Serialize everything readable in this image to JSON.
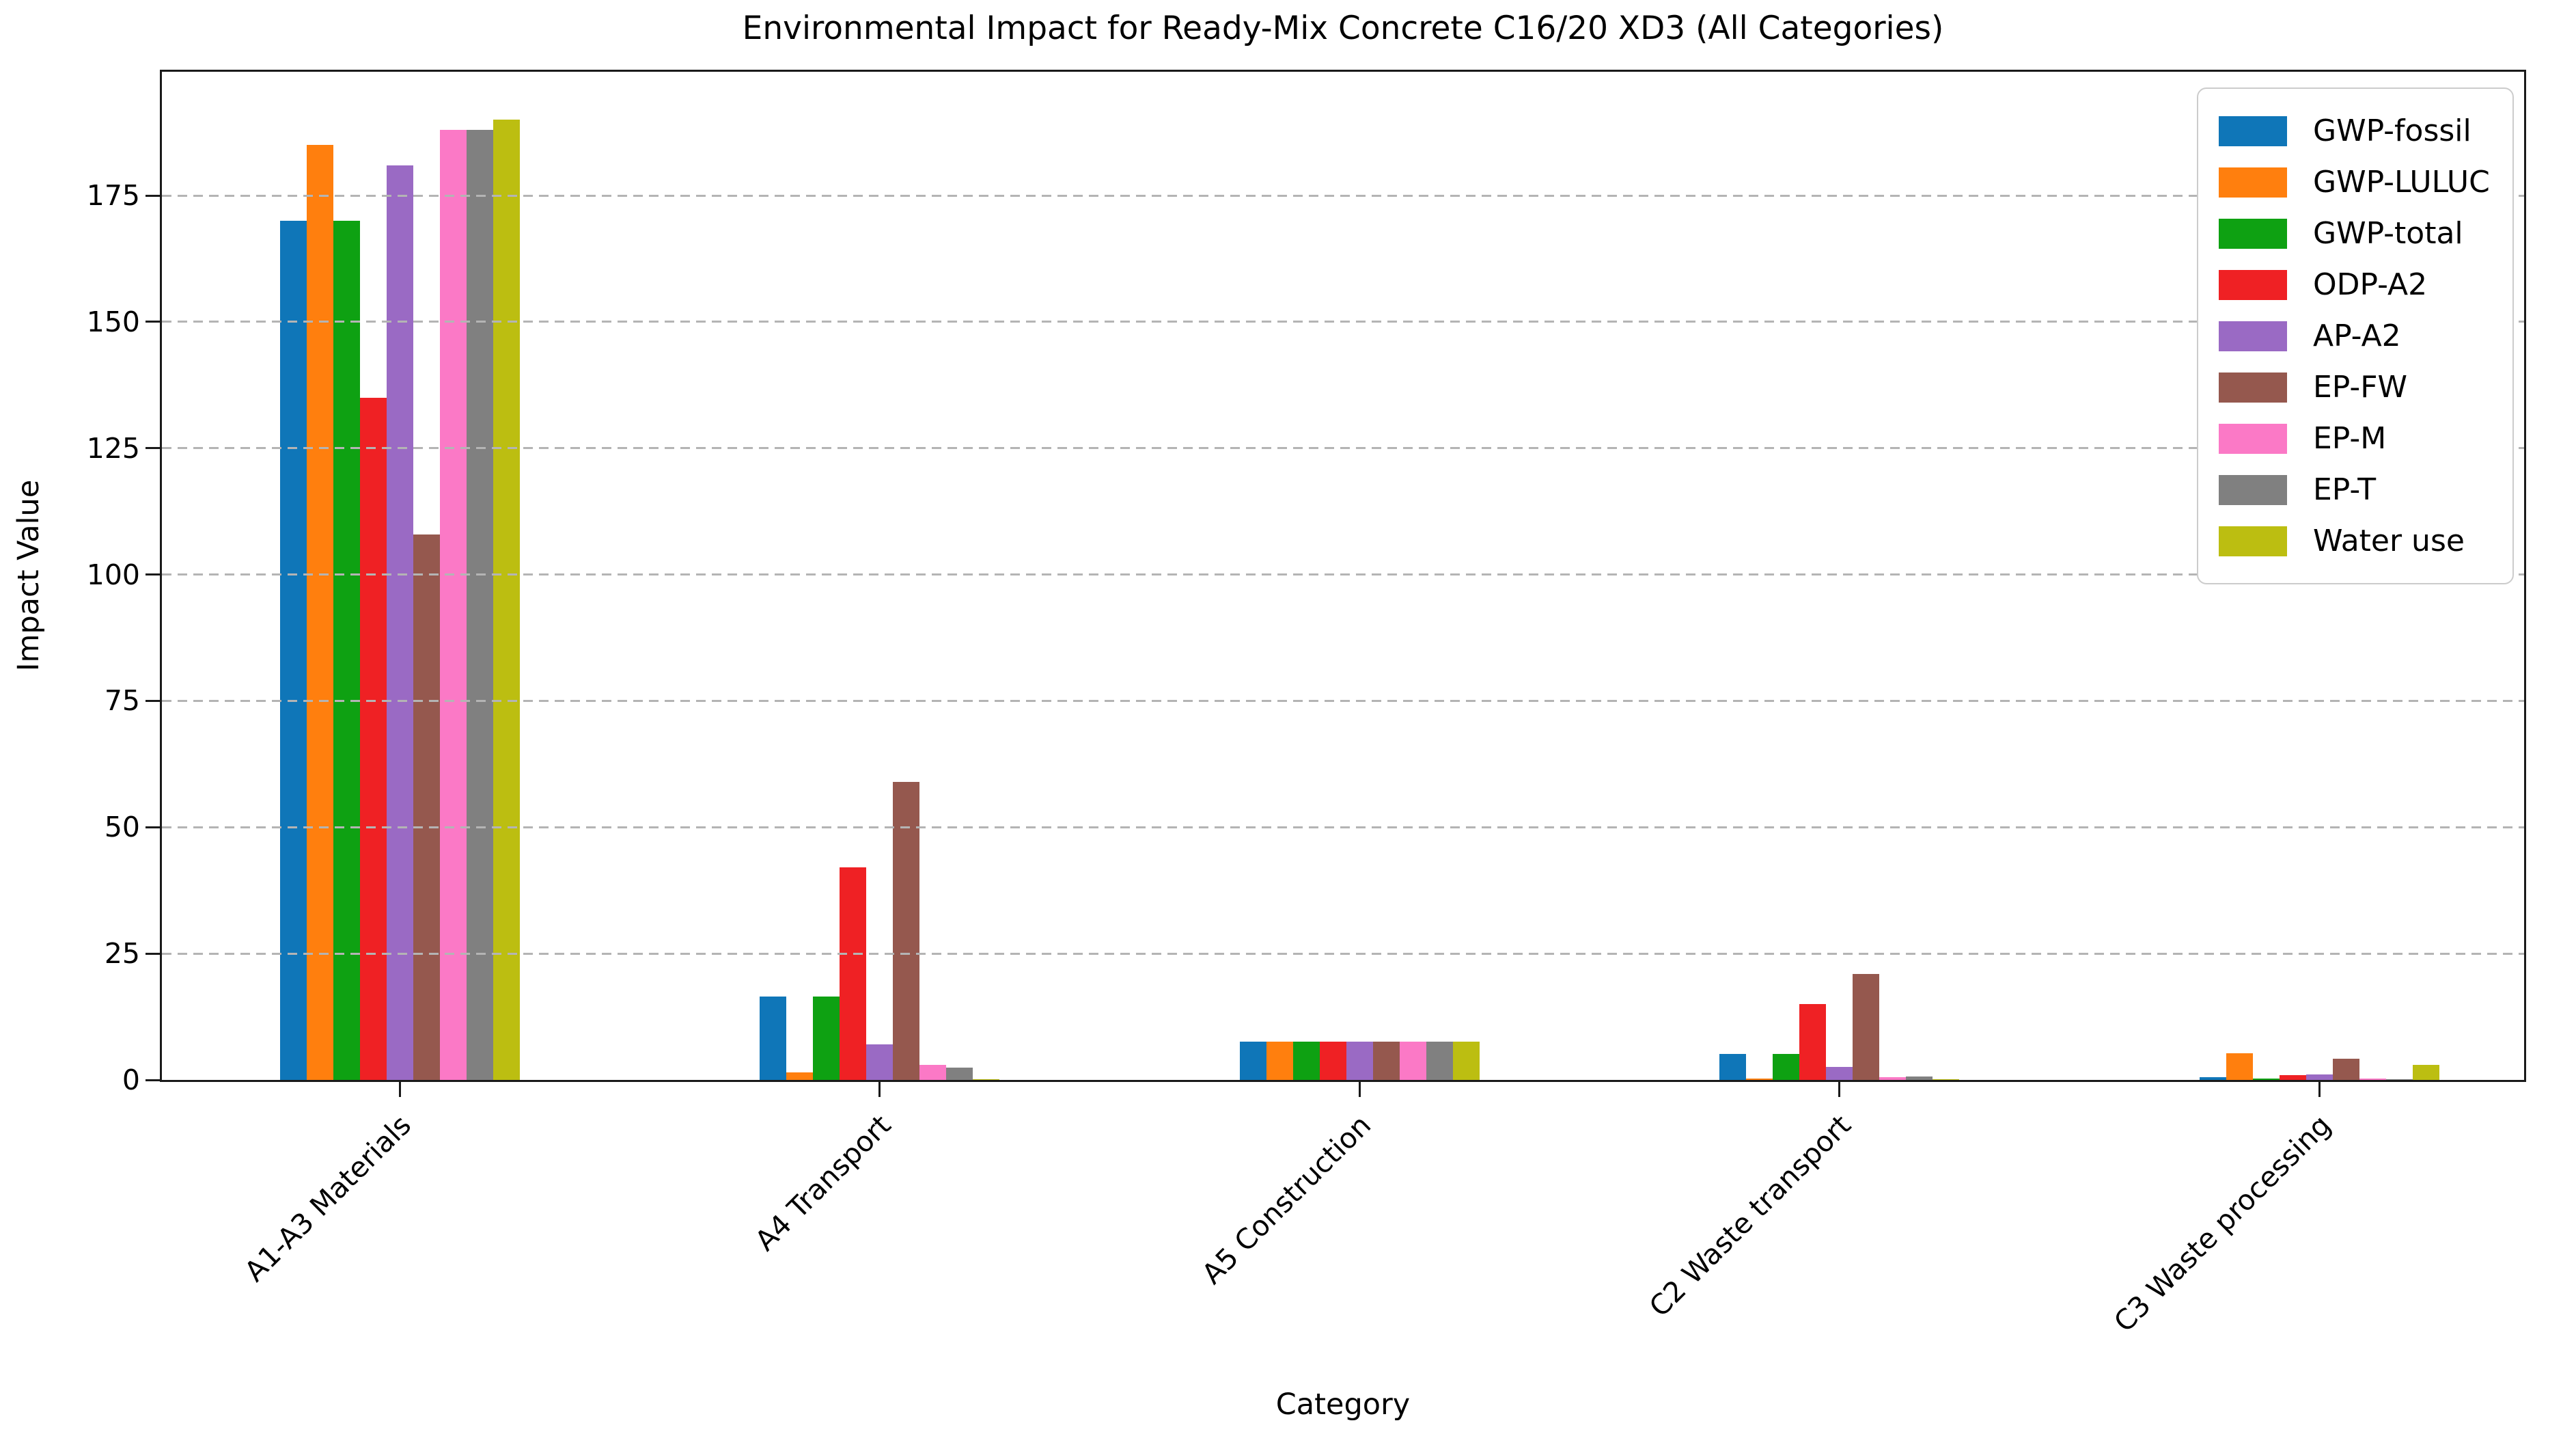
{
  "chart_data": {
    "type": "bar",
    "title": "Environmental Impact for Ready-Mix Concrete C16/20 XD3 (All Categories)",
    "xlabel": "Category",
    "ylabel": "Impact Value",
    "ylim": [
      0,
      199.5
    ],
    "yticks": [
      0,
      25,
      50,
      75,
      100,
      125,
      150,
      175
    ],
    "grid": "horizontal-dashed",
    "grid_above_bars": true,
    "legend_position": "upper-right",
    "categories": [
      "A1-A3 Materials",
      "A4 Transport",
      "A5 Construction",
      "C2 Waste transport",
      "C3 Waste processing"
    ],
    "series": [
      {
        "name": "GWP-fossil",
        "color": "#0f76b8",
        "values": [
          170,
          16.5,
          7.6,
          5.2,
          0.5
        ]
      },
      {
        "name": "GWP-LULUC",
        "color": "#ff7f0e",
        "values": [
          185,
          1.5,
          7.6,
          0.3,
          5.3
        ]
      },
      {
        "name": "GWP-total",
        "color": "#0ea112",
        "values": [
          170,
          16.5,
          7.6,
          5.1,
          0.3
        ]
      },
      {
        "name": "ODP-A2",
        "color": "#ef2124",
        "values": [
          135,
          42,
          7.6,
          15,
          0.9
        ]
      },
      {
        "name": "AP-A2",
        "color": "#9a6ac4",
        "values": [
          181,
          7,
          7.6,
          2.6,
          1.1
        ]
      },
      {
        "name": "EP-FW",
        "color": "#95584e",
        "values": [
          108,
          59,
          7.6,
          21,
          4.2
        ]
      },
      {
        "name": "EP-M",
        "color": "#fb79c6",
        "values": [
          188,
          3,
          7.6,
          0.6,
          0.3
        ]
      },
      {
        "name": "EP-T",
        "color": "#808080",
        "values": [
          188,
          2.5,
          7.6,
          0.7,
          0.1
        ]
      },
      {
        "name": "Water use",
        "color": "#bcbe11",
        "values": [
          190,
          0.1,
          7.6,
          0.1,
          3
        ]
      }
    ]
  }
}
